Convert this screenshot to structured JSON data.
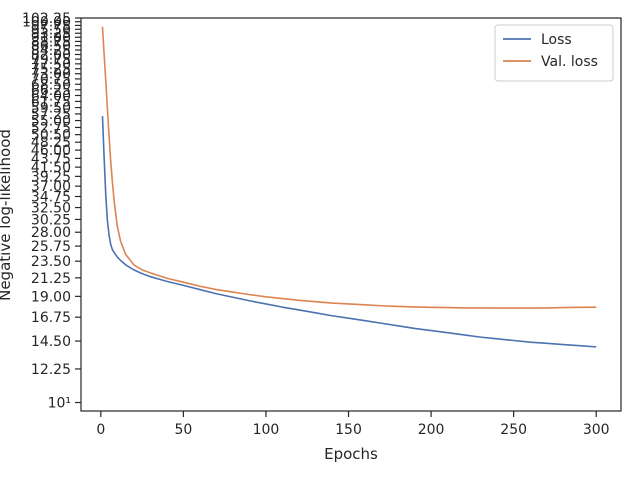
{
  "chart_data": {
    "type": "line",
    "title": "",
    "xlabel": "Epochs",
    "ylabel": "Negative log-likelihood",
    "xlim": [
      -12,
      315
    ],
    "ylim": [
      9.5,
      102.25
    ],
    "yscale": "log",
    "grid": false,
    "legend_position": "top-right",
    "x_ticks": [
      0,
      50,
      100,
      150,
      200,
      250,
      300
    ],
    "x_tick_labels": [
      "0",
      "50",
      "100",
      "150",
      "200",
      "250",
      "300"
    ],
    "y_ticks": [
      10,
      12.25,
      14.5,
      16.75,
      19.0,
      21.25,
      23.5,
      25.75,
      28.0,
      30.25,
      32.5,
      34.75,
      37.0,
      39.25,
      41.5,
      43.75,
      46.0,
      48.25,
      50.5,
      52.75,
      55.0,
      57.25,
      59.5,
      61.75,
      64.0,
      66.25,
      68.5,
      70.75,
      73.0,
      75.25,
      77.5,
      79.75,
      82.0,
      84.25,
      86.5,
      88.75,
      91.0,
      93.25,
      95.5,
      97.75,
      100.0,
      102.25
    ],
    "y_tick_labels": [
      "10¹",
      "12.25",
      "14.50",
      "16.75",
      "19.00",
      "21.25",
      "23.50",
      "25.75",
      "28.00",
      "30.25",
      "32.50",
      "34.75",
      "37.00",
      "39.25",
      "41.50",
      "43.75",
      "46.00",
      "48.25",
      "50.50",
      "52.75",
      "55.00",
      "57.25",
      "59.50",
      "61.75",
      "64.00",
      "66.25",
      "68.50",
      "70.75",
      "73.00",
      "75.25",
      "77.50",
      "79.75",
      "82.00",
      "84.25",
      "86.50",
      "88.75",
      "91.00",
      "93.25",
      "95.50",
      "97.75",
      "100.00",
      "102.25"
    ],
    "series": [
      {
        "name": "Loss",
        "color": "#4c72b0",
        "x": [
          1,
          2,
          3,
          4,
          5,
          6,
          7,
          8,
          10,
          12,
          15,
          20,
          25,
          30,
          40,
          50,
          60,
          70,
          80,
          90,
          100,
          110,
          120,
          130,
          140,
          150,
          160,
          170,
          180,
          190,
          200,
          210,
          220,
          230,
          240,
          250,
          260,
          270,
          280,
          290,
          300
        ],
        "y": [
          56.5,
          44.0,
          35.0,
          30.0,
          27.5,
          26.0,
          25.2,
          24.8,
          24.1,
          23.6,
          23.0,
          22.3,
          21.8,
          21.4,
          20.8,
          20.3,
          19.8,
          19.3,
          18.9,
          18.5,
          18.15,
          17.8,
          17.5,
          17.2,
          16.9,
          16.65,
          16.4,
          16.15,
          15.9,
          15.65,
          15.45,
          15.25,
          15.05,
          14.85,
          14.7,
          14.55,
          14.4,
          14.3,
          14.2,
          14.1,
          14.0
        ]
      },
      {
        "name": "Val. loss",
        "color": "#dd8452",
        "x": [
          1,
          2,
          3,
          4,
          5,
          6,
          7,
          8,
          10,
          12,
          15,
          20,
          25,
          30,
          40,
          50,
          60,
          70,
          80,
          90,
          100,
          110,
          120,
          130,
          140,
          150,
          160,
          170,
          180,
          190,
          200,
          210,
          220,
          230,
          240,
          250,
          260,
          270,
          280,
          290,
          300
        ],
        "y": [
          97.0,
          82.0,
          70.0,
          59.0,
          50.0,
          43.0,
          38.0,
          34.0,
          29.0,
          26.5,
          24.5,
          23.0,
          22.3,
          21.9,
          21.2,
          20.7,
          20.2,
          19.8,
          19.5,
          19.2,
          18.95,
          18.75,
          18.55,
          18.4,
          18.25,
          18.15,
          18.05,
          17.95,
          17.88,
          17.82,
          17.78,
          17.75,
          17.72,
          17.72,
          17.7,
          17.7,
          17.7,
          17.72,
          17.75,
          17.78,
          17.8
        ]
      }
    ]
  }
}
